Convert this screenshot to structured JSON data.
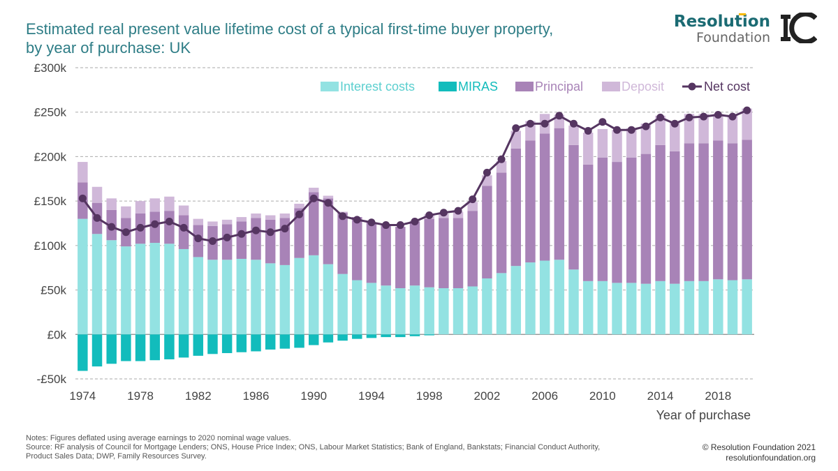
{
  "header": {
    "title_line1": "Estimated real present value lifetime cost of a typical first-time buyer property,",
    "title_line2": "by year of purchase: UK",
    "brand_line1": "Resolution",
    "brand_line2": "Foundation",
    "brand_color": "#1b6b73",
    "accent_color": "#f5b800",
    "ic_logo_icon": "ic-logo-icon"
  },
  "chart_data": {
    "type": "bar",
    "stacked": true,
    "x_title": "Year of purchase",
    "x": [
      1974,
      1975,
      1976,
      1977,
      1978,
      1979,
      1980,
      1981,
      1982,
      1983,
      1984,
      1985,
      1986,
      1987,
      1988,
      1989,
      1990,
      1991,
      1992,
      1993,
      1994,
      1995,
      1996,
      1997,
      1998,
      1999,
      2000,
      2001,
      2002,
      2003,
      2004,
      2005,
      2006,
      2007,
      2008,
      2009,
      2010,
      2011,
      2012,
      2013,
      2014,
      2015,
      2016,
      2017,
      2018,
      2019,
      2020
    ],
    "x_tick_labels": [
      "1974",
      "1978",
      "1982",
      "1986",
      "1990",
      "1994",
      "1998",
      "2002",
      "2006",
      "2010",
      "2014",
      "2018"
    ],
    "y_tick_labels": [
      "-£50k",
      "£0k",
      "£50k",
      "£100k",
      "£150k",
      "£200k",
      "£250k",
      "£300k"
    ],
    "y_ticks": [
      -50,
      0,
      50,
      100,
      150,
      200,
      250,
      300
    ],
    "ylim": [
      -50,
      300
    ],
    "y_unit": "£k",
    "grid": true,
    "legend_position": "top-right",
    "series": [
      {
        "name": "Interest costs",
        "kind": "bar",
        "color": "#93e2e2",
        "values": [
          130,
          113,
          106,
          99,
          102,
          103,
          102,
          96,
          87,
          84,
          84,
          85,
          84,
          80,
          78,
          86,
          89,
          79,
          68,
          61,
          58,
          55,
          52,
          55,
          53,
          52,
          52,
          54,
          63,
          69,
          77,
          81,
          83,
          84,
          73,
          60,
          60,
          58,
          58,
          57,
          60,
          57,
          60,
          60,
          62,
          61,
          62
        ]
      },
      {
        "name": "MIRAS",
        "kind": "bar",
        "color": "#12bcbc",
        "values": [
          -41,
          -36,
          -33,
          -30,
          -30,
          -29,
          -28,
          -26,
          -24,
          -22,
          -21,
          -20,
          -19,
          -17,
          -16,
          -15,
          -12,
          -9,
          -7,
          -5,
          -4,
          -3,
          -3,
          -2,
          -1,
          0,
          0,
          0,
          0,
          0,
          0,
          0,
          0,
          0,
          0,
          0,
          0,
          0,
          0,
          0,
          0,
          0,
          0,
          0,
          0,
          0,
          0
        ]
      },
      {
        "name": "Principal",
        "kind": "bar",
        "color": "#a883b7",
        "values": [
          41,
          35,
          34,
          32,
          34,
          35,
          37,
          38,
          36,
          38,
          40,
          42,
          47,
          49,
          53,
          56,
          71,
          74,
          69,
          71,
          68,
          68,
          69,
          72,
          77,
          79,
          79,
          85,
          104,
          113,
          132,
          137,
          143,
          148,
          140,
          131,
          139,
          136,
          141,
          146,
          153,
          149,
          155,
          155,
          156,
          154,
          157
        ]
      },
      {
        "name": "Deposit",
        "kind": "bar",
        "color": "#d0b8d9",
        "values": [
          23,
          18,
          13,
          13,
          14,
          15,
          16,
          11,
          7,
          5,
          5,
          5,
          5,
          5,
          5,
          5,
          5,
          3,
          1,
          0,
          0,
          0,
          0,
          1,
          5,
          5,
          7,
          10,
          12,
          13,
          20,
          22,
          22,
          15,
          22,
          36,
          32,
          36,
          33,
          34,
          33,
          33,
          33,
          33,
          30,
          32,
          35
        ]
      },
      {
        "name": "Net cost",
        "kind": "line",
        "color": "#553561",
        "values": [
          153,
          131,
          121,
          115,
          120,
          124,
          127,
          120,
          108,
          105,
          109,
          113,
          117,
          115,
          119,
          135,
          153,
          148,
          133,
          129,
          126,
          123,
          123,
          127,
          134,
          137,
          139,
          152,
          182,
          197,
          232,
          237,
          237,
          246,
          237,
          229,
          239,
          230,
          230,
          234,
          244,
          237,
          244,
          245,
          247,
          245,
          252
        ]
      }
    ]
  },
  "notes": {
    "line1": "Notes: Figures deflated using average earnings to 2020 nominal wage values.",
    "line2": "Source: RF analysis of Council for Mortgage Lenders; ONS, House Price Index; ONS, Labour Market Statistics; Bank of England, Bankstats; Financial Conduct Authority,",
    "line3": "Product Sales Data; DWP, Family Resources Survey."
  },
  "credit": {
    "copyright": "© Resolution Foundation 2021",
    "url": "resolutionfoundation.org"
  }
}
